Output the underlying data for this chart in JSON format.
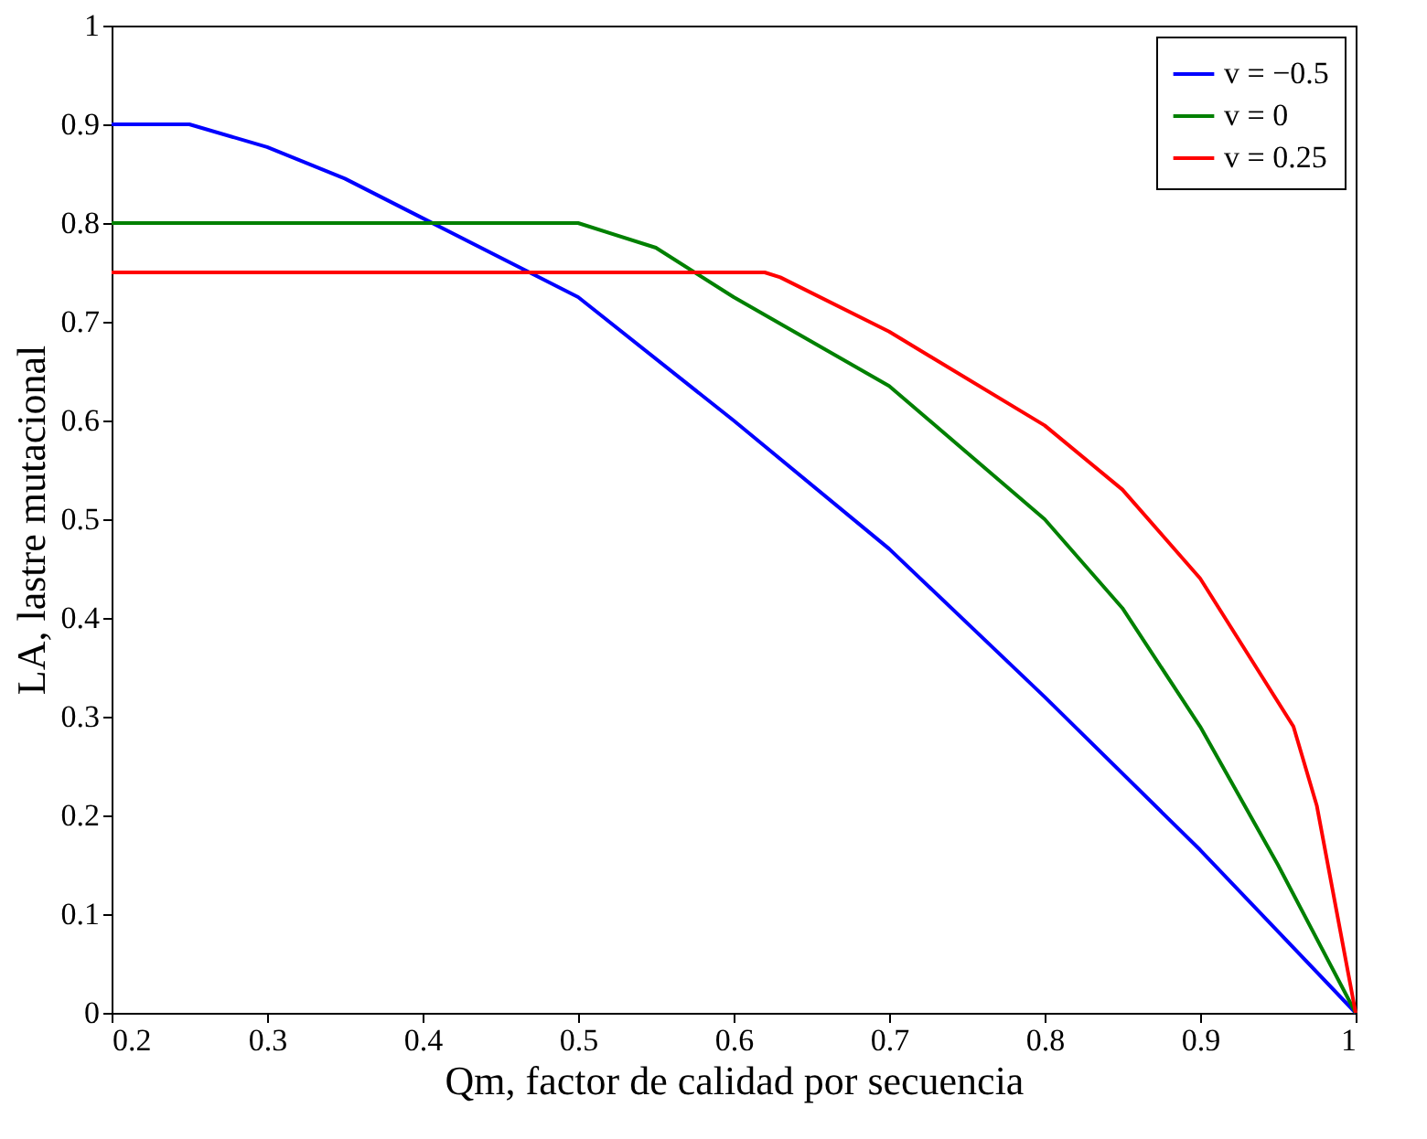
{
  "chart_data": {
    "type": "line",
    "xlabel": "Qm, factor de calidad por secuencia",
    "ylabel": "LA, lastre mutacional",
    "xlim": [
      0.2,
      1
    ],
    "xticks": [
      0.2,
      0.3,
      0.4,
      0.5,
      0.6,
      0.7,
      0.8,
      0.9,
      1
    ],
    "ylim": [
      0,
      1
    ],
    "yticks": [
      0,
      0.1,
      0.2,
      0.3,
      0.4,
      0.5,
      0.6,
      0.7,
      0.8,
      0.9,
      1
    ],
    "grid": false,
    "legend": "top right",
    "line_style": "solid",
    "marker": "none",
    "series": [
      {
        "name": "v = −0.5",
        "color": "#0000ff",
        "x": [
          0.2,
          0.25,
          0.3,
          0.35,
          0.4,
          0.5,
          0.6,
          0.7,
          0.8,
          0.9,
          1
        ],
        "values": [
          0.9,
          0.9,
          0.877,
          0.845,
          0.805,
          0.725,
          0.6,
          0.47,
          0.32,
          0.165,
          0
        ]
      },
      {
        "name": "v = 0",
        "color": "#008000",
        "x": [
          0.2,
          0.5,
          0.55,
          0.6,
          0.7,
          0.8,
          0.85,
          0.9,
          0.95,
          1
        ],
        "values": [
          0.8,
          0.8,
          0.775,
          0.725,
          0.635,
          0.5,
          0.41,
          0.29,
          0.15,
          0
        ]
      },
      {
        "name": "v = 0.25",
        "color": "#ff0000",
        "x": [
          0.2,
          0.62,
          0.63,
          0.7,
          0.8,
          0.85,
          0.9,
          0.94,
          0.96,
          0.975,
          1
        ],
        "values": [
          0.75,
          0.75,
          0.745,
          0.69,
          0.595,
          0.53,
          0.44,
          0.34,
          0.29,
          0.21,
          0
        ]
      }
    ]
  }
}
